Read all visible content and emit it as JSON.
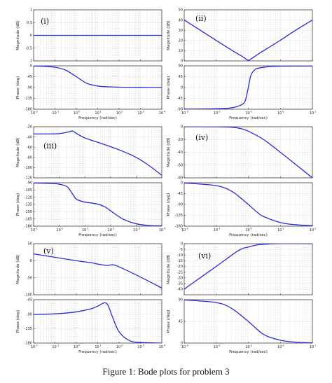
{
  "caption": "Figure 1: Bode plots for problem 3",
  "colors": {
    "curve": "#2a2ad6",
    "grid": "#b9b9b9",
    "axis": "#222222"
  },
  "chart_data": [
    {
      "panel": "(i)",
      "type": "line",
      "xscale": "log",
      "grid": true,
      "magnitude": {
        "ylabel": "Magnitude (dB)",
        "ylim": [
          -1,
          1
        ],
        "yticks": [
          -1,
          -0.5,
          0,
          0.5,
          1
        ],
        "ytick_labels": [
          "-1",
          "-0.5",
          "0",
          "0.5",
          "1"
        ],
        "xlim": [
          0.01,
          10000
        ],
        "xticks": [
          0.01,
          0.1,
          1,
          10,
          100,
          1000,
          10000
        ],
        "xtick_labels": [],
        "xlabel": "",
        "points": [
          [
            0.01,
            0
          ],
          [
            10000,
            0
          ]
        ]
      },
      "phase": {
        "ylabel": "Phase (deg)",
        "ylim": [
          -180,
          0
        ],
        "yticks": [
          -180,
          -135,
          -90,
          -45,
          0
        ],
        "ytick_labels": [
          "-180",
          "-135",
          "-90",
          "-45",
          "0"
        ],
        "xlim": [
          0.01,
          10000
        ],
        "xticks": [
          0.01,
          0.1,
          1,
          10,
          100,
          1000,
          10000
        ],
        "xtick_labels": [
          "-2",
          "-1",
          "0",
          "1",
          "2",
          "3",
          "4"
        ],
        "xlabel": "Frequency  (rad/sec)",
        "points": [
          [
            0.01,
            -1
          ],
          [
            0.03,
            -2
          ],
          [
            0.1,
            -6
          ],
          [
            0.3,
            -17
          ],
          [
            1,
            -45
          ],
          [
            3,
            -72
          ],
          [
            10,
            -84
          ],
          [
            30,
            -87
          ],
          [
            100,
            -88.5
          ],
          [
            1000,
            -89.5
          ],
          [
            10000,
            -90
          ]
        ]
      }
    },
    {
      "panel": "(ii)",
      "type": "line",
      "xscale": "log",
      "grid": true,
      "magnitude": {
        "ylabel": "Magnitude (dB)",
        "ylim": [
          0,
          50
        ],
        "yticks": [
          0,
          10,
          20,
          30,
          40,
          50
        ],
        "ytick_labels": [
          "0",
          "10",
          "20",
          "30",
          "40",
          "50"
        ],
        "xlim": [
          0.001,
          10
        ],
        "xticks": [
          0.001,
          0.01,
          0.1,
          1,
          10
        ],
        "xtick_labels": [],
        "xlabel": "",
        "points": [
          [
            0.001,
            40
          ],
          [
            0.003,
            30.5
          ],
          [
            0.01,
            20
          ],
          [
            0.03,
            10.6
          ],
          [
            0.06,
            5
          ],
          [
            0.08,
            2.4
          ],
          [
            0.1,
            0.5
          ],
          [
            0.13,
            2.5
          ],
          [
            0.2,
            6.5
          ],
          [
            0.5,
            14.3
          ],
          [
            1,
            20.2
          ],
          [
            3,
            30
          ],
          [
            10,
            40
          ]
        ]
      },
      "phase": {
        "ylabel": "Phase (deg)",
        "ylim": [
          -90,
          90
        ],
        "yticks": [
          -90,
          -45,
          0,
          45,
          90
        ],
        "ytick_labels": [
          "-90",
          "-45",
          "0",
          "45",
          "90"
        ],
        "xlim": [
          0.001,
          10
        ],
        "xticks": [
          0.001,
          0.01,
          0.1,
          1,
          10
        ],
        "xtick_labels": [
          "-3",
          "-2",
          "-1",
          "0",
          "1"
        ],
        "xlabel": "Frequency  (rad/sec)",
        "points": [
          [
            0.001,
            -89.5
          ],
          [
            0.01,
            -88
          ],
          [
            0.03,
            -84
          ],
          [
            0.06,
            -72
          ],
          [
            0.08,
            -55
          ],
          [
            0.1,
            0
          ],
          [
            0.12,
            50
          ],
          [
            0.15,
            70
          ],
          [
            0.2,
            80
          ],
          [
            0.5,
            87
          ],
          [
            1,
            88.5
          ],
          [
            10,
            89.5
          ]
        ]
      }
    },
    {
      "panel": "(iii)",
      "type": "line",
      "xscale": "log",
      "grid": true,
      "magnitude": {
        "ylabel": "Magnitude (dB)",
        "ylim": [
          -120,
          -20
        ],
        "yticks": [
          -120,
          -100,
          -80,
          -60,
          -40,
          -20
        ],
        "ytick_labels": [
          "-120",
          "-100",
          "-80",
          "-60",
          "-40",
          "-20"
        ],
        "xlim": [
          0.1,
          10000
        ],
        "xticks": [
          0.1,
          1,
          10,
          100,
          1000,
          10000
        ],
        "xtick_labels": [],
        "xlabel": "",
        "points": [
          [
            0.1,
            -34
          ],
          [
            0.5,
            -34
          ],
          [
            1,
            -33.5
          ],
          [
            2,
            -31
          ],
          [
            3,
            -28.5
          ],
          [
            3.5,
            -29
          ],
          [
            5,
            -34
          ],
          [
            10,
            -42
          ],
          [
            30,
            -50
          ],
          [
            100,
            -59
          ],
          [
            300,
            -68
          ],
          [
            1000,
            -80
          ],
          [
            3000,
            -95
          ],
          [
            10000,
            -115
          ]
        ]
      },
      "phase": {
        "ylabel": "Phase (deg)",
        "ylim": [
          -180,
          -90
        ],
        "yticks": [
          -180,
          -165,
          -150,
          -135,
          -120,
          -105,
          -90
        ],
        "ytick_labels": [
          "-180",
          "-165",
          "-150",
          "-135",
          "-120",
          "-105",
          "-90"
        ],
        "xlim": [
          0.1,
          10000
        ],
        "xticks": [
          0.1,
          1,
          10,
          100,
          1000,
          10000
        ],
        "xtick_labels": [
          "-1",
          "0",
          "1",
          "2",
          "3",
          "4"
        ],
        "xlabel": "Frequency  (rad/sec)",
        "points": [
          [
            0.1,
            -90.5
          ],
          [
            0.5,
            -91.5
          ],
          [
            1,
            -93
          ],
          [
            2,
            -98
          ],
          [
            3,
            -110
          ],
          [
            4,
            -120
          ],
          [
            5,
            -125
          ],
          [
            10,
            -130
          ],
          [
            30,
            -134
          ],
          [
            60,
            -140
          ],
          [
            100,
            -148
          ],
          [
            300,
            -165
          ],
          [
            1000,
            -175
          ],
          [
            3000,
            -178.5
          ],
          [
            10000,
            -179.5
          ]
        ]
      }
    },
    {
      "panel": "(iv)",
      "type": "line",
      "xscale": "log",
      "grid": true,
      "magnitude": {
        "ylabel": "Magnitude (dB)",
        "ylim": [
          -80,
          0
        ],
        "yticks": [
          -80,
          -60,
          -40,
          -20,
          0
        ],
        "ytick_labels": [
          "-80",
          "-60",
          "-40",
          "-20",
          "0"
        ],
        "xlim": [
          0.01,
          100
        ],
        "xticks": [
          0.01,
          0.1,
          1,
          10,
          100
        ],
        "xtick_labels": [],
        "xlabel": "",
        "points": [
          [
            0.01,
            0
          ],
          [
            0.1,
            -0.1
          ],
          [
            0.3,
            -0.8
          ],
          [
            0.6,
            -3
          ],
          [
            1,
            -7
          ],
          [
            3,
            -20
          ],
          [
            10,
            -40
          ],
          [
            30,
            -59
          ],
          [
            100,
            -80
          ]
        ]
      },
      "phase": {
        "ylabel": "Phase (deg)",
        "ylim": [
          -180,
          0
        ],
        "yticks": [
          -180,
          -135,
          -90,
          -45,
          0
        ],
        "ytick_labels": [
          "-180",
          "-135",
          "-90",
          "-45",
          "0"
        ],
        "xlim": [
          0.01,
          100
        ],
        "xticks": [
          0.01,
          0.1,
          1,
          10,
          100
        ],
        "xtick_labels": [
          "-2",
          "-1",
          "0",
          "1",
          "2"
        ],
        "xlabel": "Frequency  (rad/sec)",
        "points": [
          [
            0.01,
            -1
          ],
          [
            0.1,
            -12
          ],
          [
            0.3,
            -35
          ],
          [
            0.6,
            -65
          ],
          [
            1,
            -90
          ],
          [
            2,
            -125
          ],
          [
            3,
            -140
          ],
          [
            10,
            -165
          ],
          [
            30,
            -174
          ],
          [
            100,
            -178
          ]
        ]
      }
    },
    {
      "panel": "(v)",
      "type": "line",
      "xscale": "log",
      "grid": true,
      "magnitude": {
        "ylabel": "Magnitude (dB)",
        "ylim": [
          -100,
          50
        ],
        "yticks": [
          -100,
          -50,
          0,
          50
        ],
        "ytick_labels": [
          "-100",
          "-50",
          "0",
          "50"
        ],
        "xlim": [
          0.01,
          10000
        ],
        "xticks": [
          0.01,
          0.1,
          1,
          10,
          100,
          1000,
          10000
        ],
        "xtick_labels": [],
        "xlabel": "",
        "points": [
          [
            0.01,
            20
          ],
          [
            0.1,
            10
          ],
          [
            1,
            0
          ],
          [
            5,
            -6
          ],
          [
            10,
            -10
          ],
          [
            20,
            -13
          ],
          [
            30,
            -14
          ],
          [
            50,
            -12
          ],
          [
            100,
            -18
          ],
          [
            1000,
            -48
          ],
          [
            10000,
            -80
          ]
        ]
      },
      "phase": {
        "ylabel": "Phase (deg)",
        "ylim": [
          -180,
          -45
        ],
        "yticks": [
          -180,
          -135,
          -90,
          -45
        ],
        "ytick_labels": [
          "-180",
          "-135",
          "-90",
          "-45"
        ],
        "xlim": [
          0.01,
          10000
        ],
        "xticks": [
          0.01,
          0.1,
          1,
          10,
          100,
          1000,
          10000
        ],
        "xtick_labels": [
          "-2",
          "-1",
          "0",
          "1",
          "2",
          "3",
          "4"
        ],
        "xlabel": "Frequency  (rad/sec)",
        "points": [
          [
            0.01,
            -91
          ],
          [
            0.1,
            -89
          ],
          [
            1,
            -83
          ],
          [
            5,
            -73
          ],
          [
            10,
            -65
          ],
          [
            20,
            -55
          ],
          [
            30,
            -62
          ],
          [
            50,
            -100
          ],
          [
            100,
            -145
          ],
          [
            300,
            -172
          ],
          [
            1000,
            -178
          ],
          [
            10000,
            -180
          ]
        ]
      }
    },
    {
      "panel": "(vi)",
      "type": "line",
      "xscale": "log",
      "grid": true,
      "magnitude": {
        "ylabel": "Magnitude (dB)",
        "ylim": [
          -45,
          0
        ],
        "yticks": [
          -40,
          -35,
          -30,
          -25,
          -20,
          -15,
          -10,
          -5,
          0
        ],
        "ytick_labels": [
          "-40",
          "-35",
          "-30",
          "-25",
          "-20",
          "-15",
          "-10",
          "-5",
          "0"
        ],
        "xlim": [
          0.001,
          10
        ],
        "xticks": [
          0.001,
          0.01,
          0.1,
          1,
          10
        ],
        "xtick_labels": [],
        "xlabel": "",
        "points": [
          [
            0.001,
            -40
          ],
          [
            0.01,
            -20
          ],
          [
            0.05,
            -6
          ],
          [
            0.1,
            -3
          ],
          [
            0.2,
            -1
          ],
          [
            0.5,
            -0.2
          ],
          [
            1,
            0
          ],
          [
            10,
            0
          ]
        ]
      },
      "phase": {
        "ylabel": "Phase (deg)",
        "ylim": [
          0,
          90
        ],
        "yticks": [
          0,
          45,
          90
        ],
        "ytick_labels": [
          "0",
          "45",
          "90"
        ],
        "xlim": [
          0.001,
          10
        ],
        "xticks": [
          0.001,
          0.01,
          0.1,
          1,
          10
        ],
        "xtick_labels": [
          "-3",
          "-2",
          "-1",
          "0",
          "1"
        ],
        "xlabel": "Frequency  (rad/sec)",
        "points": [
          [
            0.001,
            89.5
          ],
          [
            0.01,
            84
          ],
          [
            0.03,
            72
          ],
          [
            0.1,
            45
          ],
          [
            0.3,
            18
          ],
          [
            1,
            6
          ],
          [
            3,
            2
          ],
          [
            10,
            0.5
          ]
        ]
      }
    }
  ]
}
